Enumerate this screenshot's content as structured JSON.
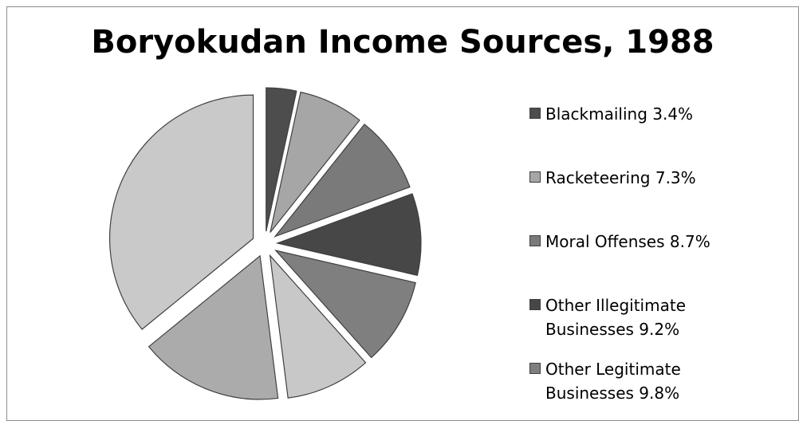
{
  "chart_data": {
    "type": "pie",
    "title": "Boryokudan Income Sources, 1988",
    "exploded": true,
    "slices": [
      {
        "label": "Blackmailing",
        "value": 3.4,
        "display": "Blackmailing 3.4%",
        "color": "#4d4d4d"
      },
      {
        "label": "Racketeering",
        "value": 7.3,
        "display": "Racketeering 7.3%",
        "color": "#a6a6a6"
      },
      {
        "label": "Moral Offenses",
        "value": 8.7,
        "display": "Moral Offenses 8.7%",
        "color": "#7a7a7a"
      },
      {
        "label": "Other Illegitimate Businesses",
        "value": 9.2,
        "display": "Other Illegitimate\nBusinesses 9.2%",
        "color": "#474747"
      },
      {
        "label": "Other Legitimate Businesses",
        "value": 9.8,
        "display": "Other Legitimate\nBusinesses 9.8%",
        "color": "#7f7f7f"
      },
      {
        "label": "",
        "value": 9.6,
        "display": "",
        "color": "#c8c8c8"
      },
      {
        "label": "",
        "value": 16.1,
        "display": "",
        "color": "#ababab"
      },
      {
        "label": "",
        "value": 35.9,
        "display": "",
        "color": "#c9c9c9"
      }
    ],
    "legend_position": "right"
  }
}
